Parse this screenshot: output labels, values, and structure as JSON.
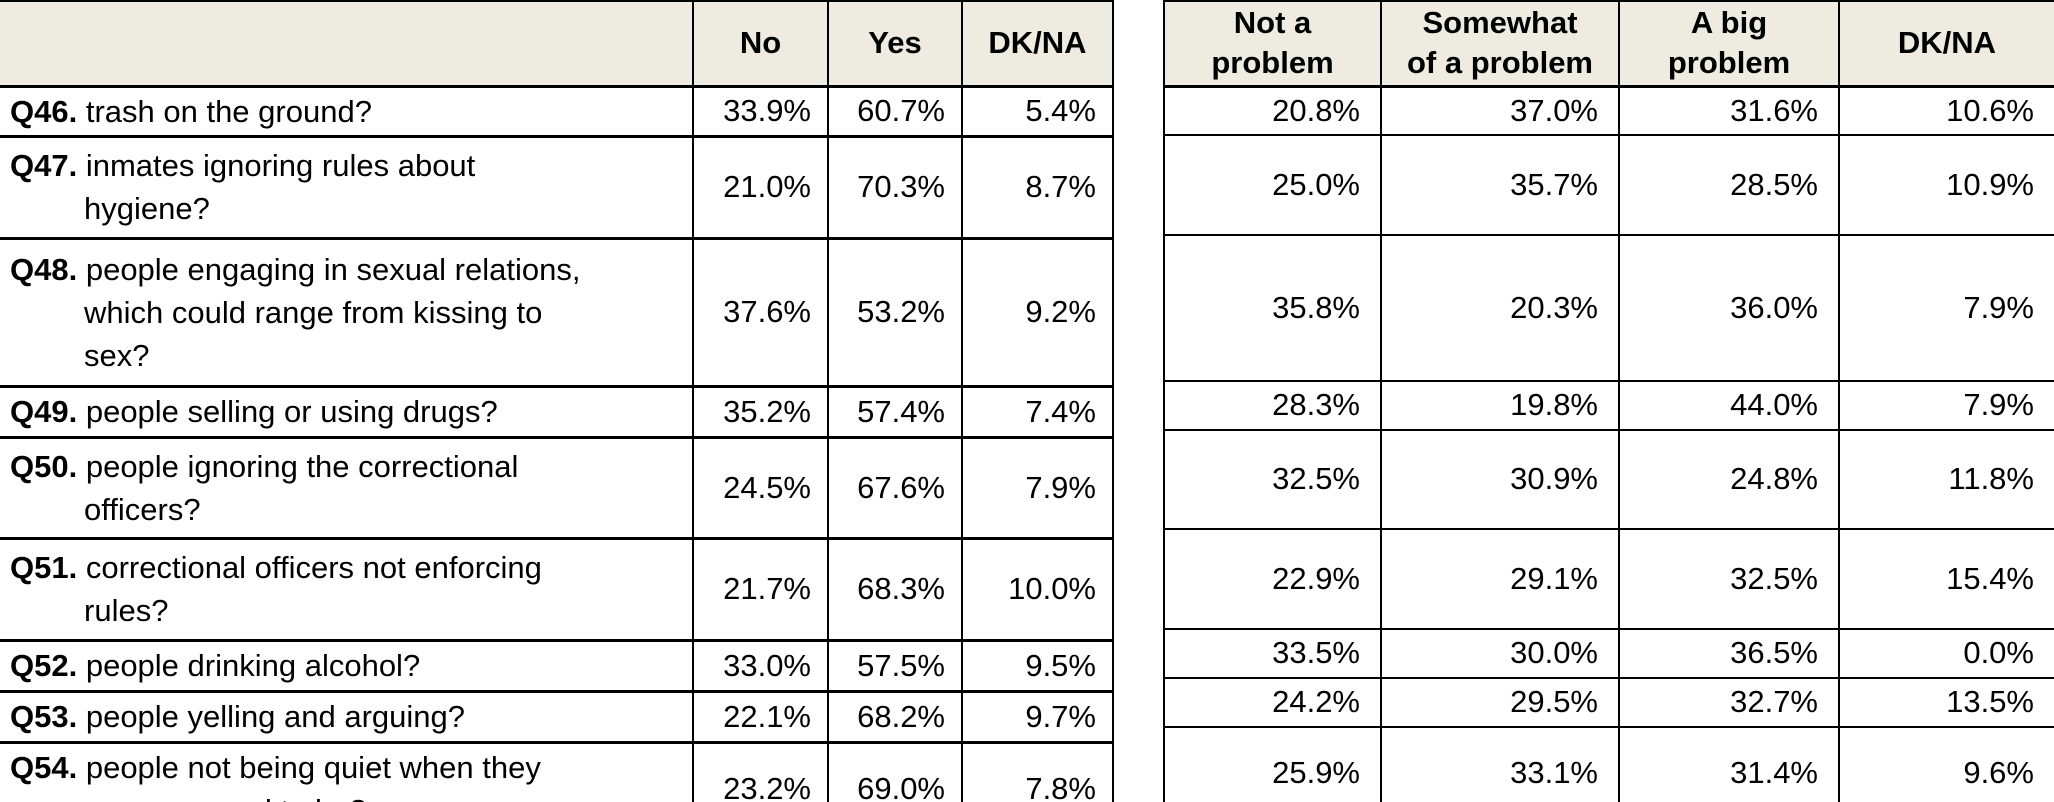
{
  "colors": {
    "header_bg": "#eeece1",
    "border": "#000000",
    "text": "#000000",
    "page_bg": "#ffffff"
  },
  "left_table": {
    "question_header": "",
    "headers": [
      "No",
      "Yes",
      "DK/NA"
    ]
  },
  "right_table": {
    "headers": [
      [
        "Not a",
        "problem"
      ],
      [
        "Somewhat",
        "of a problem"
      ],
      [
        "A big",
        "problem"
      ],
      [
        "DK/NA"
      ]
    ]
  },
  "rows": [
    {
      "qnum": "Q46.",
      "question_lines": [
        "trash on the ground?"
      ],
      "left": [
        "33.9%",
        "60.7%",
        "5.4%"
      ],
      "right": [
        "20.8%",
        "37.0%",
        "31.6%",
        "10.6%"
      ]
    },
    {
      "qnum": "Q47.",
      "question_lines": [
        "inmates ignoring rules about",
        "hygiene?"
      ],
      "left": [
        "21.0%",
        "70.3%",
        "8.7%"
      ],
      "right": [
        "25.0%",
        "35.7%",
        "28.5%",
        "10.9%"
      ]
    },
    {
      "qnum": "Q48.",
      "question_lines": [
        "people engaging in sexual relations,",
        "which could range from kissing to",
        "sex?"
      ],
      "left": [
        "37.6%",
        "53.2%",
        "9.2%"
      ],
      "right": [
        "35.8%",
        "20.3%",
        "36.0%",
        "7.9%"
      ]
    },
    {
      "qnum": "Q49.",
      "question_lines": [
        "people selling or using drugs?"
      ],
      "left": [
        "35.2%",
        "57.4%",
        "7.4%"
      ],
      "right": [
        "28.3%",
        "19.8%",
        "44.0%",
        "7.9%"
      ]
    },
    {
      "qnum": "Q50.",
      "question_lines": [
        "people ignoring the correctional",
        "officers?"
      ],
      "left": [
        "24.5%",
        "67.6%",
        "7.9%"
      ],
      "right": [
        "32.5%",
        "30.9%",
        "24.8%",
        "11.8%"
      ]
    },
    {
      "qnum": "Q51.",
      "question_lines": [
        "correctional officers not enforcing",
        "rules?"
      ],
      "left": [
        "21.7%",
        "68.3%",
        "10.0%"
      ],
      "right": [
        "22.9%",
        "29.1%",
        "32.5%",
        "15.4%"
      ]
    },
    {
      "qnum": "Q52.",
      "question_lines": [
        "people drinking alcohol?"
      ],
      "left": [
        "33.0%",
        "57.5%",
        "9.5%"
      ],
      "right": [
        "33.5%",
        "30.0%",
        "36.5%",
        "0.0%"
      ]
    },
    {
      "qnum": "Q53.",
      "question_lines": [
        "people yelling and arguing?"
      ],
      "left": [
        "22.1%",
        "68.2%",
        "9.7%"
      ],
      "right": [
        "24.2%",
        "29.5%",
        "32.7%",
        "13.5%"
      ]
    },
    {
      "qnum": "Q54.",
      "question_lines": [
        "people not being quiet when they",
        "are supposed to be?"
      ],
      "left": [
        "23.2%",
        "69.0%",
        "7.8%"
      ],
      "right": [
        "25.9%",
        "33.1%",
        "31.4%",
        "9.6%"
      ]
    }
  ]
}
